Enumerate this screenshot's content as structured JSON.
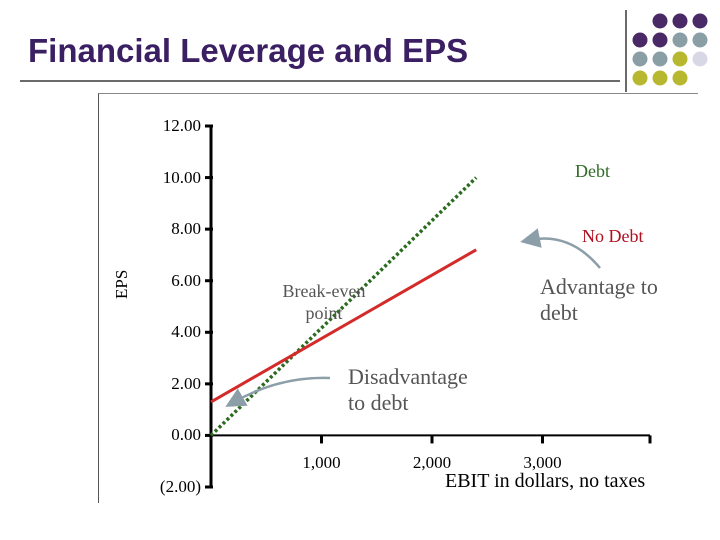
{
  "slide": {
    "title": "Financial Leverage and EPS"
  },
  "colors": {
    "title": "#3b1f63",
    "dot_purple": "#4a2a66",
    "dot_gray": "#8a9ea6",
    "dot_olive": "#b8b830",
    "dot_light": "#d7d7e6",
    "debt_line": "#2a6b1e",
    "no_debt_line": "#d42a2a",
    "arrow": "#8c9ea8"
  },
  "chart_data": {
    "type": "line",
    "title": "",
    "xlabel": "EBIT in dollars, no taxes",
    "ylabel": "EPS",
    "xlim": [
      0,
      3400
    ],
    "ylim": [
      -2,
      12
    ],
    "x_ticks": [
      1000,
      2000,
      3000
    ],
    "x_tick_labels": [
      "1,000",
      "2,000",
      "3,000"
    ],
    "y_ticks": [
      -2,
      0,
      2,
      4,
      6,
      8,
      10,
      12
    ],
    "y_tick_labels": [
      "(2.00)",
      "0.00",
      "2.00",
      "4.00",
      "6.00",
      "8.00",
      "10.00",
      "12.00"
    ],
    "series": [
      {
        "name": "Debt",
        "x": [
          0,
          2400
        ],
        "y": [
          0,
          10
        ]
      },
      {
        "name": "No Debt",
        "x": [
          0,
          2400
        ],
        "y": [
          1.3,
          7.2
        ]
      }
    ],
    "annotations": {
      "break_even": "Break-even point",
      "disadvantage": "Disadvantage to debt",
      "advantage": "Advantage to debt"
    }
  }
}
